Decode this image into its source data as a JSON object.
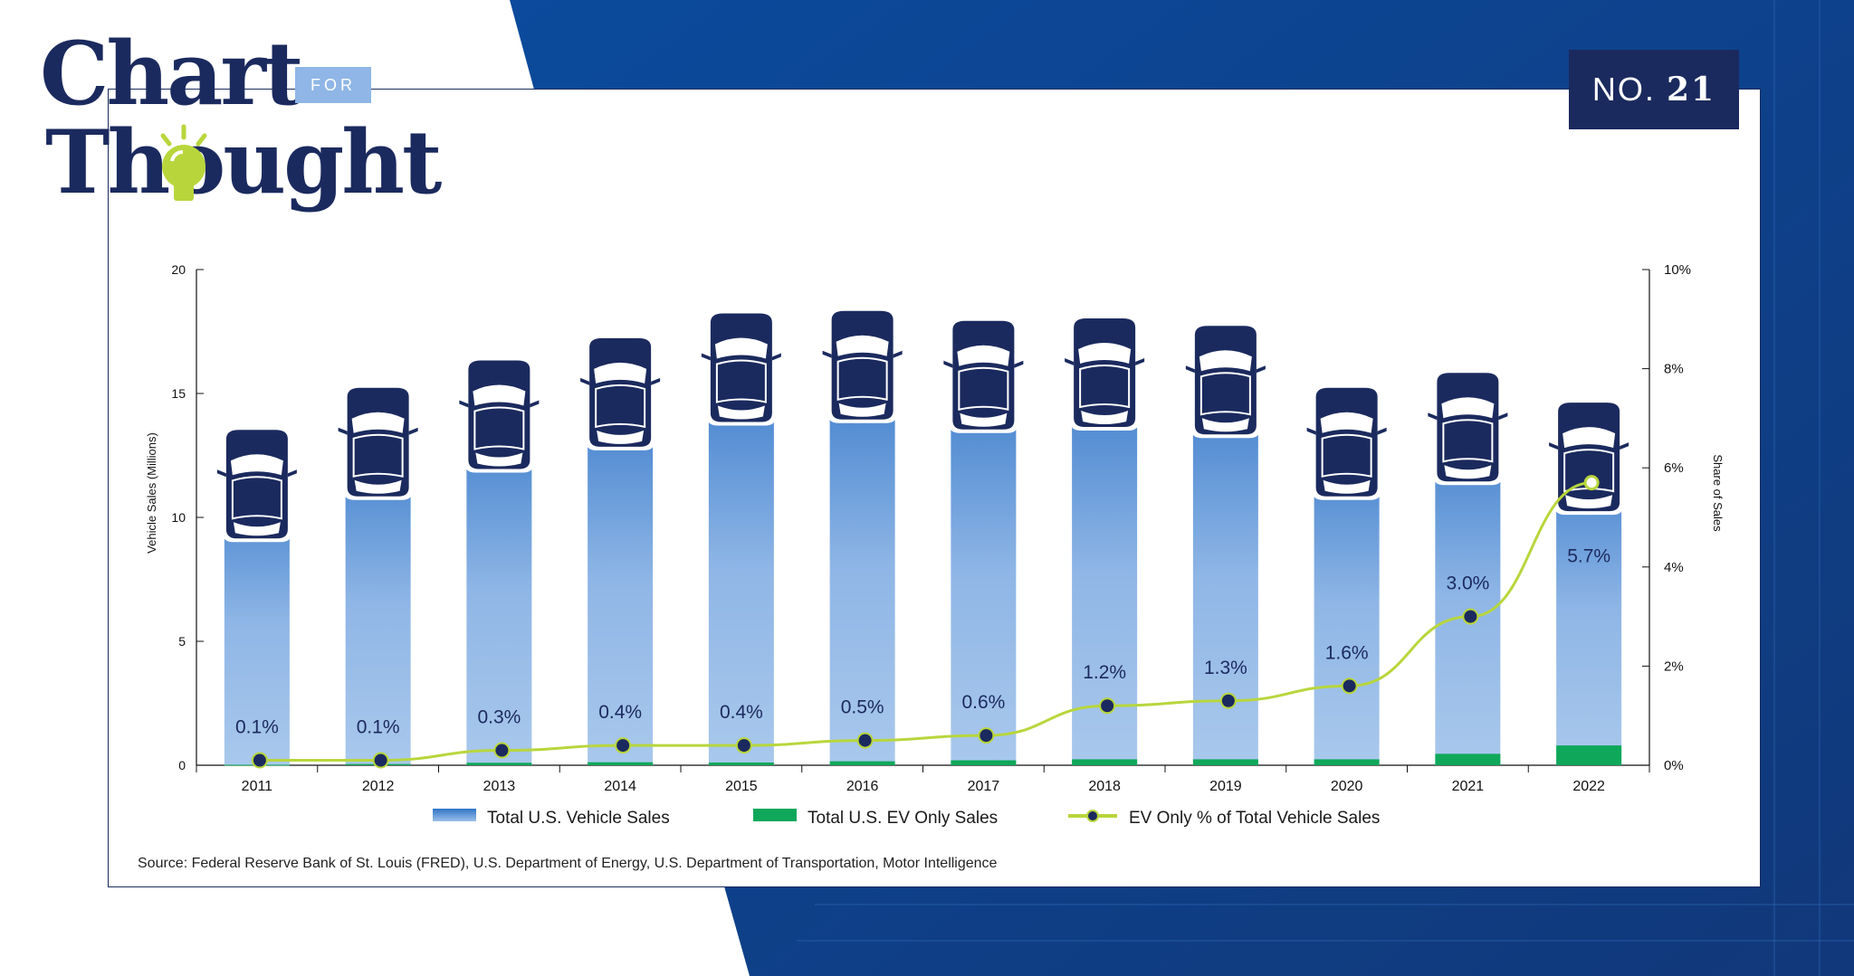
{
  "branding": {
    "title_line1": "Chart",
    "title_for": "FOR",
    "title_line2": "Thought",
    "number_prefix": "NO.",
    "number": "21"
  },
  "colors": {
    "navy": "#1b2a5e",
    "total_bar_top": "#3a7fcf",
    "total_bar_bottom": "#a9c8ec",
    "ev_bar": "#0fa85a",
    "ev_line": "#b8d63c",
    "background_blue": "#0d4fa0"
  },
  "chart_data": {
    "type": "bar",
    "categories": [
      "2011",
      "2012",
      "2013",
      "2014",
      "2015",
      "2016",
      "2017",
      "2018",
      "2019",
      "2020",
      "2021",
      "2022"
    ],
    "series": [
      {
        "name": "Total U.S. Vehicle Sales",
        "type": "bar",
        "axis": "left",
        "values": [
          12.8,
          14.5,
          15.6,
          16.5,
          17.5,
          17.6,
          17.2,
          17.3,
          17.0,
          14.5,
          15.1,
          13.9
        ]
      },
      {
        "name": "Total U.S. EV Only Sales",
        "type": "bar",
        "axis": "left",
        "values": [
          0.02,
          0.05,
          0.1,
          0.12,
          0.11,
          0.16,
          0.2,
          0.24,
          0.24,
          0.24,
          0.46,
          0.8
        ]
      },
      {
        "name": "EV Only % of Total Vehicle Sales",
        "type": "line",
        "axis": "right",
        "values": [
          0.1,
          0.1,
          0.3,
          0.4,
          0.4,
          0.5,
          0.6,
          1.2,
          1.3,
          1.6,
          3.0,
          5.7
        ],
        "labels": [
          "0.1%",
          "0.1%",
          "0.3%",
          "0.4%",
          "0.4%",
          "0.5%",
          "0.6%",
          "1.2%",
          "1.3%",
          "1.6%",
          "3.0%",
          "5.7%"
        ]
      }
    ],
    "ylabel": "Vehicle Sales (Millions)",
    "y2label": "Share of Sales",
    "ylim": [
      0,
      20
    ],
    "y2lim": [
      0,
      10
    ],
    "yticks": [
      "0",
      "5",
      "10",
      "15",
      "20"
    ],
    "y2ticks": [
      "0%",
      "2%",
      "4%",
      "6%",
      "8%",
      "10%"
    ],
    "grid": false,
    "legend_position": "bottom"
  },
  "source": "Source: Federal Reserve Bank of St. Louis (FRED), U.S. Department of Energy, U.S. Department of Transportation, Motor Intelligence"
}
